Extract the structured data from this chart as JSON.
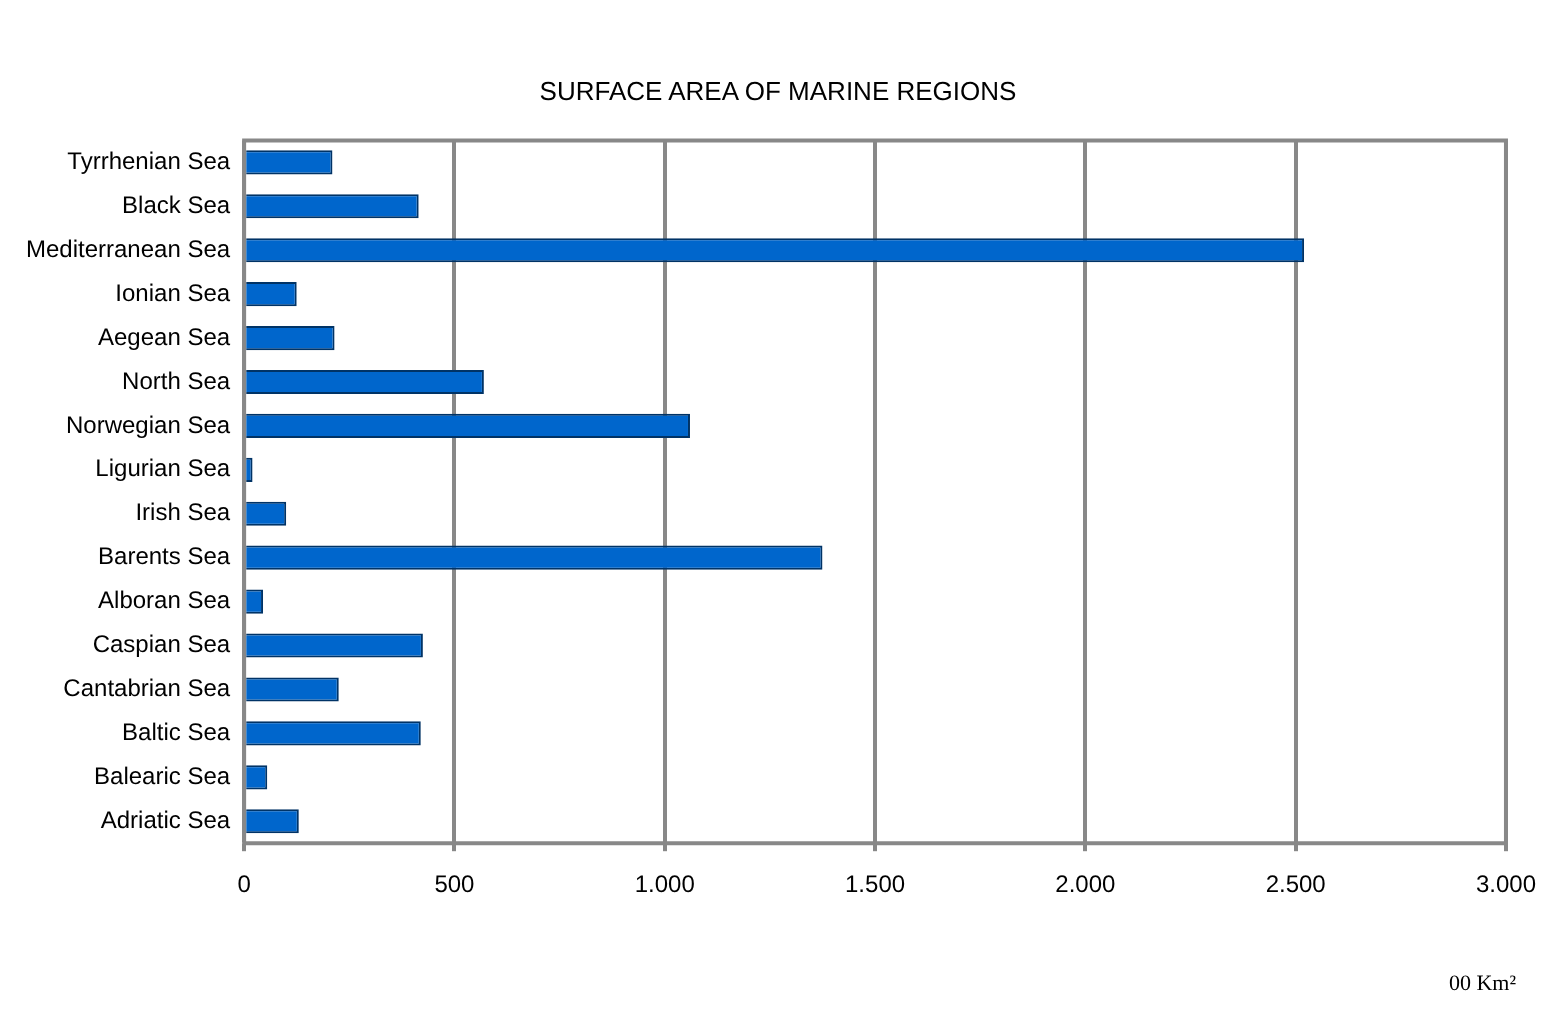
{
  "chart_data": {
    "type": "bar",
    "orientation": "horizontal",
    "title": "SURFACE AREA OF MARINE REGIONS",
    "categories": [
      "Tyrrhenian Sea",
      "Black Sea",
      "Mediterranean Sea",
      "Ionian Sea",
      "Aegean Sea",
      "North Sea",
      "Norwegian Sea",
      "Ligurian Sea",
      "Irish Sea",
      "Barents Sea",
      "Alboran Sea",
      "Caspian Sea",
      "Cantabrian Sea",
      "Baltic Sea",
      "Balearic Sea",
      "Adriatic Sea"
    ],
    "values": [
      210,
      415,
      2520,
      125,
      215,
      570,
      1060,
      20,
      100,
      1375,
      45,
      425,
      225,
      420,
      55,
      130
    ],
    "color": "#0066cc",
    "xlim": [
      0,
      3000
    ],
    "xticks": [
      0,
      500,
      {
        "value": 1000,
        "label": "1.000"
      },
      {
        "value": 1500,
        "label": "1.500"
      },
      {
        "value": 2000,
        "label": "2.000"
      },
      {
        "value": 2500,
        "label": "2.500"
      },
      {
        "value": 3000,
        "label": "3.000"
      }
    ],
    "grid": "x",
    "legend": false,
    "annotations": [
      "00 Km²"
    ]
  }
}
